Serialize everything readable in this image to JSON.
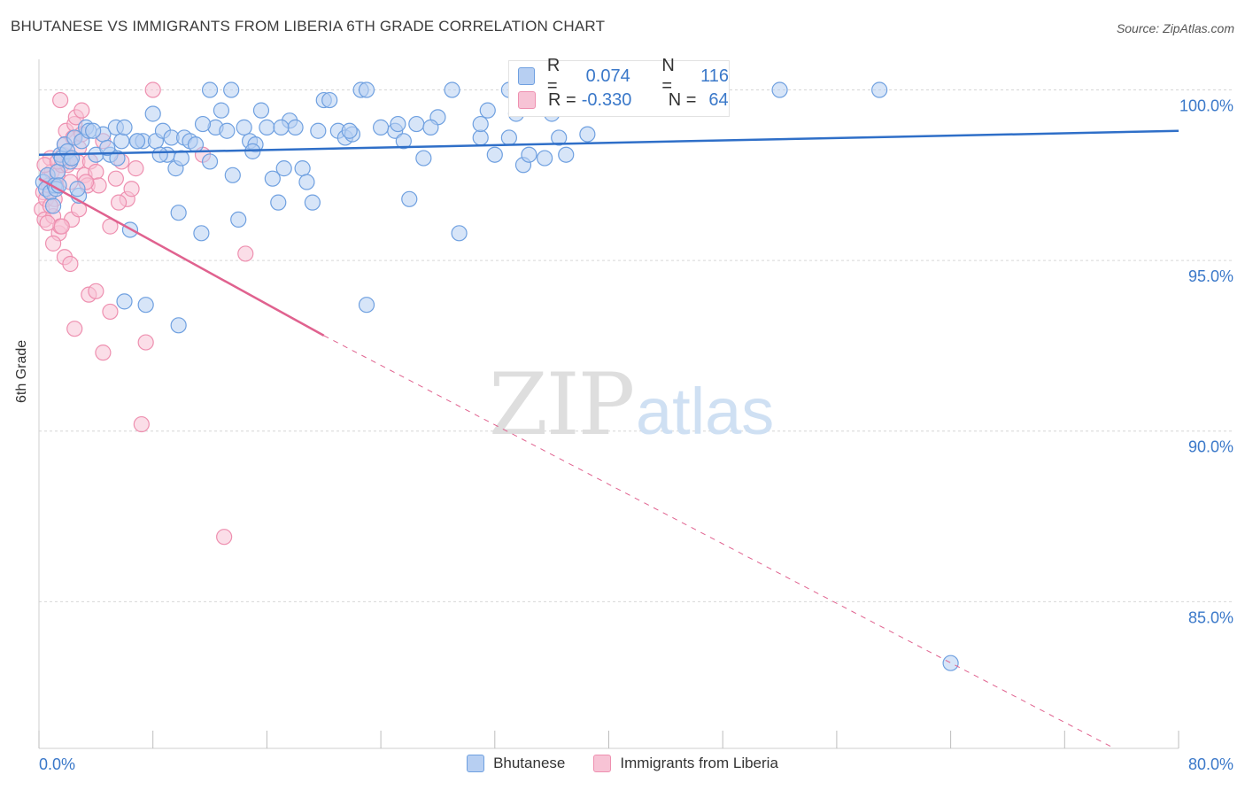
{
  "title": "BHUTANESE VS IMMIGRANTS FROM LIBERIA 6TH GRADE CORRELATION CHART",
  "source": "Source: ZipAtlas.com",
  "colors": {
    "blue": "#6fa0e0",
    "blue_fill": "#b7cff2",
    "blue_line": "#2f6fc8",
    "pink": "#ee90b0",
    "pink_fill": "#f7c3d5",
    "pink_line": "#e0628f",
    "axis_text": "#3a78c9"
  },
  "stats": [
    {
      "r_label": "R =",
      "r_value": "0.074",
      "n_label": "N =",
      "n_value": "116"
    },
    {
      "r_label": "R =",
      "r_value": "-0.330",
      "n_label": "N =",
      "n_value": "64"
    }
  ],
  "legend": {
    "items": [
      "Bhutanese",
      "Immigrants from Liberia"
    ]
  },
  "watermark": {
    "zip": "ZIP",
    "atlas": "atlas"
  },
  "chart_data": {
    "type": "scatter",
    "xlabel": "",
    "ylabel": "6th Grade",
    "xlim": [
      0,
      80
    ],
    "ylim": [
      80.7,
      101
    ],
    "x_tick_labels": [
      "0.0%",
      "80.0%"
    ],
    "y_ticks": [
      {
        "value": 100,
        "label": "100.0%"
      },
      {
        "value": 95,
        "label": "95.0%"
      },
      {
        "value": 90,
        "label": "90.0%"
      },
      {
        "value": 85,
        "label": "85.0%"
      }
    ],
    "grid": "horizontal dashed",
    "series": [
      {
        "name": "Bhutanese",
        "color": "blue",
        "trend": {
          "x0": 0,
          "y0": 98.1,
          "x1": 80,
          "y1": 98.8
        },
        "points": [
          [
            0.3,
            97.3
          ],
          [
            0.5,
            97.1
          ],
          [
            0.6,
            97.5
          ],
          [
            0.8,
            97.0
          ],
          [
            1.0,
            96.6
          ],
          [
            1.1,
            97.2
          ],
          [
            1.3,
            97.6
          ],
          [
            1.5,
            98.1
          ],
          [
            1.6,
            98.0
          ],
          [
            1.8,
            98.4
          ],
          [
            2.0,
            98.2
          ],
          [
            2.2,
            97.9
          ],
          [
            2.3,
            98.0
          ],
          [
            2.5,
            98.6
          ],
          [
            2.8,
            96.9
          ],
          [
            3.0,
            98.5
          ],
          [
            3.3,
            98.9
          ],
          [
            3.5,
            98.8
          ],
          [
            4.0,
            98.1
          ],
          [
            4.5,
            98.7
          ],
          [
            5.0,
            98.1
          ],
          [
            5.4,
            98.9
          ],
          [
            5.8,
            98.5
          ],
          [
            6.0,
            98.9
          ],
          [
            6.4,
            95.9
          ],
          [
            6.9,
            98.5
          ],
          [
            7.3,
            98.5
          ],
          [
            8.0,
            99.3
          ],
          [
            8.2,
            98.5
          ],
          [
            8.7,
            98.8
          ],
          [
            9.0,
            98.1
          ],
          [
            9.3,
            98.6
          ],
          [
            9.6,
            97.7
          ],
          [
            9.8,
            96.4
          ],
          [
            10.2,
            98.6
          ],
          [
            10.6,
            98.5
          ],
          [
            11.0,
            98.4
          ],
          [
            11.4,
            95.8
          ],
          [
            12.0,
            97.9
          ],
          [
            12.4,
            98.9
          ],
          [
            12.8,
            99.4
          ],
          [
            13.2,
            98.8
          ],
          [
            13.6,
            97.5
          ],
          [
            14.0,
            96.2
          ],
          [
            14.4,
            98.9
          ],
          [
            14.8,
            98.5
          ],
          [
            15.2,
            98.4
          ],
          [
            15.6,
            99.4
          ],
          [
            16.0,
            98.9
          ],
          [
            16.4,
            97.4
          ],
          [
            16.8,
            96.7
          ],
          [
            17.2,
            97.7
          ],
          [
            17.6,
            99.1
          ],
          [
            18.0,
            98.9
          ],
          [
            18.5,
            97.7
          ],
          [
            18.8,
            97.3
          ],
          [
            19.2,
            96.7
          ],
          [
            19.6,
            98.8
          ],
          [
            20.0,
            99.7
          ],
          [
            20.4,
            99.7
          ],
          [
            21.0,
            98.8
          ],
          [
            21.5,
            98.6
          ],
          [
            22.0,
            98.7
          ],
          [
            22.6,
            100.0
          ],
          [
            23.0,
            100.0
          ],
          [
            25.0,
            98.8
          ],
          [
            25.2,
            99.0
          ],
          [
            25.6,
            98.5
          ],
          [
            26.0,
            96.8
          ],
          [
            27.0,
            98.0
          ],
          [
            28.0,
            99.2
          ],
          [
            29.0,
            100.0
          ],
          [
            29.5,
            95.8
          ],
          [
            31.0,
            98.6
          ],
          [
            31.5,
            99.4
          ],
          [
            32.0,
            98.1
          ],
          [
            33.0,
            98.6
          ],
          [
            33.5,
            99.3
          ],
          [
            34.0,
            97.8
          ],
          [
            34.4,
            98.1
          ],
          [
            35.5,
            98.0
          ],
          [
            36.0,
            99.3
          ],
          [
            37.0,
            98.1
          ],
          [
            38.5,
            98.7
          ],
          [
            40.0,
            99.6
          ],
          [
            42.0,
            100.0
          ],
          [
            44.0,
            100.0
          ],
          [
            45.0,
            99.6
          ],
          [
            52.0,
            100.0
          ],
          [
            59.0,
            100.0
          ],
          [
            36.5,
            98.6
          ],
          [
            26.5,
            99.0
          ],
          [
            27.5,
            98.9
          ],
          [
            33.0,
            100.0
          ],
          [
            2.7,
            97.1
          ],
          [
            4.8,
            98.3
          ],
          [
            6.9,
            98.5
          ],
          [
            10.0,
            98.0
          ],
          [
            11.5,
            99.0
          ],
          [
            13.5,
            100.0
          ],
          [
            15.0,
            98.2
          ],
          [
            17.0,
            98.9
          ],
          [
            21.8,
            98.8
          ],
          [
            24.0,
            98.9
          ],
          [
            31.0,
            99.0
          ],
          [
            5.5,
            98.0
          ],
          [
            8.5,
            98.1
          ],
          [
            3.8,
            98.8
          ],
          [
            1.2,
            97.1
          ],
          [
            1.4,
            97.2
          ],
          [
            6.0,
            93.8
          ],
          [
            7.5,
            93.7
          ],
          [
            9.8,
            93.1
          ],
          [
            23.0,
            93.7
          ],
          [
            64.0,
            83.2
          ],
          [
            12.0,
            100.0
          ]
        ]
      },
      {
        "name": "Immigrants from Liberia",
        "color": "pink",
        "trend": {
          "x0": 0,
          "y0": 97.4,
          "x1": 20,
          "y1": 92.8
        },
        "trend_dashed": {
          "x0": 20,
          "y0": 92.8,
          "x1": 75.5,
          "y1": 80.7
        },
        "points": [
          [
            0.2,
            96.5
          ],
          [
            0.3,
            97.0
          ],
          [
            0.4,
            96.2
          ],
          [
            0.5,
            96.8
          ],
          [
            0.6,
            97.4
          ],
          [
            0.7,
            97.2
          ],
          [
            0.8,
            98.0
          ],
          [
            0.9,
            97.6
          ],
          [
            1.0,
            96.3
          ],
          [
            1.1,
            96.8
          ],
          [
            1.2,
            97.2
          ],
          [
            1.3,
            97.5
          ],
          [
            1.4,
            95.8
          ],
          [
            1.5,
            96.0
          ],
          [
            1.6,
            97.8
          ],
          [
            1.7,
            98.1
          ],
          [
            1.8,
            98.4
          ],
          [
            1.9,
            98.8
          ],
          [
            2.0,
            97.8
          ],
          [
            2.1,
            98.0
          ],
          [
            2.2,
            97.3
          ],
          [
            2.3,
            96.2
          ],
          [
            2.4,
            98.6
          ],
          [
            2.5,
            99.0
          ],
          [
            2.6,
            99.2
          ],
          [
            2.7,
            97.9
          ],
          [
            2.8,
            98.3
          ],
          [
            3.0,
            98.7
          ],
          [
            3.2,
            97.5
          ],
          [
            3.4,
            97.2
          ],
          [
            3.6,
            97.9
          ],
          [
            4.0,
            97.6
          ],
          [
            4.2,
            97.2
          ],
          [
            4.5,
            98.5
          ],
          [
            5.0,
            96.0
          ],
          [
            5.4,
            97.4
          ],
          [
            5.8,
            97.9
          ],
          [
            6.2,
            96.8
          ],
          [
            6.5,
            97.1
          ],
          [
            6.8,
            97.7
          ],
          [
            1.5,
            99.7
          ],
          [
            3.0,
            99.4
          ],
          [
            1.0,
            95.5
          ],
          [
            1.8,
            95.1
          ],
          [
            2.2,
            94.9
          ],
          [
            3.5,
            94.0
          ],
          [
            4.0,
            94.1
          ],
          [
            5.0,
            93.5
          ],
          [
            2.5,
            93.0
          ],
          [
            4.5,
            92.3
          ],
          [
            7.5,
            92.6
          ],
          [
            7.2,
            90.2
          ],
          [
            14.5,
            95.2
          ],
          [
            8.0,
            100.0
          ],
          [
            11.5,
            98.1
          ],
          [
            13.0,
            86.9
          ],
          [
            0.4,
            97.8
          ],
          [
            0.8,
            96.6
          ],
          [
            1.3,
            97.9
          ],
          [
            2.8,
            96.5
          ],
          [
            0.6,
            96.1
          ],
          [
            1.6,
            96.0
          ],
          [
            3.3,
            97.3
          ],
          [
            5.6,
            96.7
          ]
        ]
      }
    ]
  }
}
